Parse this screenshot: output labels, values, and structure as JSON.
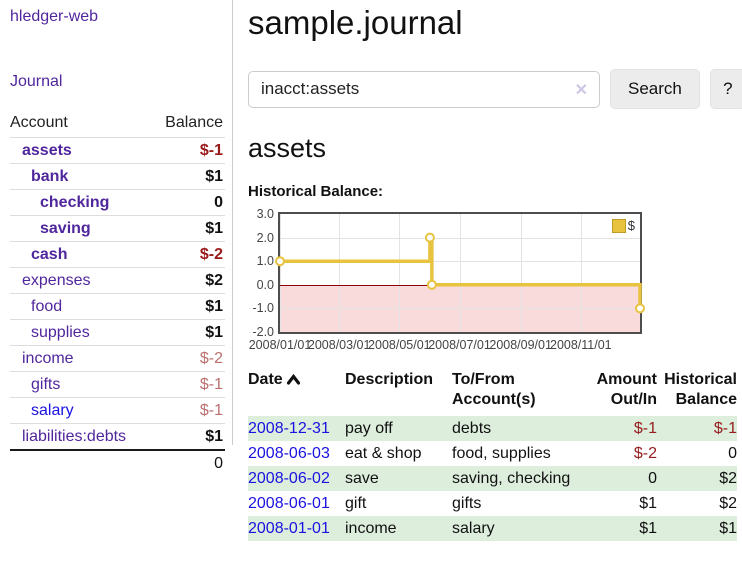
{
  "sidebar": {
    "brand": "hledger-web",
    "nav": {
      "journal": "Journal"
    },
    "accounts": {
      "col_account": "Account",
      "col_balance": "Balance",
      "rows": [
        {
          "name": "assets",
          "balance": "$-1",
          "indent": 0,
          "bold": true,
          "tone": "neg-dark",
          "link": "purple"
        },
        {
          "name": "bank",
          "balance": "$1",
          "indent": 1,
          "bold": true,
          "tone": "plain",
          "link": "purple"
        },
        {
          "name": "checking",
          "balance": "0",
          "indent": 2,
          "bold": true,
          "tone": "plain",
          "link": "purple"
        },
        {
          "name": "saving",
          "balance": "$1",
          "indent": 2,
          "bold": true,
          "tone": "plain",
          "link": "purple"
        },
        {
          "name": "cash",
          "balance": "$-2",
          "indent": 1,
          "bold": true,
          "tone": "neg-dark",
          "link": "purple"
        },
        {
          "name": "expenses",
          "balance": "$2",
          "indent": 0,
          "bold": false,
          "tone": "plain",
          "link": "purple"
        },
        {
          "name": "food",
          "balance": "$1",
          "indent": 1,
          "bold": false,
          "tone": "plain",
          "link": "purple"
        },
        {
          "name": "supplies",
          "balance": "$1",
          "indent": 1,
          "bold": false,
          "tone": "plain",
          "link": "purple"
        },
        {
          "name": "income",
          "balance": "$-2",
          "indent": 0,
          "bold": false,
          "tone": "neg-light",
          "link": "purple"
        },
        {
          "name": "gifts",
          "balance": "$-1",
          "indent": 1,
          "bold": false,
          "tone": "neg-light",
          "link": "purple"
        },
        {
          "name": "salary",
          "balance": "$-1",
          "indent": 1,
          "bold": false,
          "tone": "neg-light",
          "link": "blue"
        },
        {
          "name": "liabilities:debts",
          "balance": "$1",
          "indent": 0,
          "bold": false,
          "tone": "plain",
          "link": "purple"
        }
      ],
      "total": "0"
    }
  },
  "header": {
    "title": "sample.journal"
  },
  "search": {
    "value": "inacct:assets",
    "clear_icon": "✕",
    "button": "Search",
    "help": "?"
  },
  "account_page": {
    "title": "assets",
    "chart_label": "Historical Balance:"
  },
  "chart_data": {
    "type": "line",
    "step": true,
    "title": "Historical Balance",
    "x_range": [
      "2008-01-01",
      "2008-12-31"
    ],
    "x_ticks": [
      "2008/01/01",
      "2008/03/01",
      "2008/05/01",
      "2008/07/01",
      "2008/09/01",
      "2008/11/01"
    ],
    "y_ticks": [
      3,
      2,
      1,
      0,
      -1,
      -2
    ],
    "ylim": [
      -2,
      3
    ],
    "grid": true,
    "negative_fill": "#f9dbdb",
    "zero_line_color": "#8b0000",
    "legend": {
      "label": "$",
      "position": "top-right"
    },
    "series": [
      {
        "name": "$",
        "color": "#e8c33f",
        "points": [
          {
            "date": "2008-01-01",
            "value": 1
          },
          {
            "date": "2008-06-01",
            "value": 2
          },
          {
            "date": "2008-06-03",
            "value": 0
          },
          {
            "date": "2008-12-31",
            "value": -1
          }
        ]
      }
    ]
  },
  "transactions": {
    "columns": [
      "Date",
      "Description",
      "To/From Account(s)",
      "Amount Out/In",
      "Historical Balance"
    ],
    "rows": [
      {
        "date": "2008-12-31",
        "description": "pay off",
        "accounts": "debts",
        "amount": "$-1",
        "amount_neg": true,
        "balance": "$-1",
        "balance_neg": true
      },
      {
        "date": "2008-06-03",
        "description": "eat & shop",
        "accounts": "food, supplies",
        "amount": "$-2",
        "amount_neg": true,
        "balance": "0",
        "balance_neg": false
      },
      {
        "date": "2008-06-02",
        "description": "save",
        "accounts": "saving, checking",
        "amount": "0",
        "amount_neg": false,
        "balance": "$2",
        "balance_neg": false
      },
      {
        "date": "2008-06-01",
        "description": "gift",
        "accounts": "gifts",
        "amount": "$1",
        "amount_neg": false,
        "balance": "$2",
        "balance_neg": false
      },
      {
        "date": "2008-01-01",
        "description": "income",
        "accounts": "salary",
        "amount": "$1",
        "amount_neg": false,
        "balance": "$1",
        "balance_neg": false
      }
    ]
  }
}
